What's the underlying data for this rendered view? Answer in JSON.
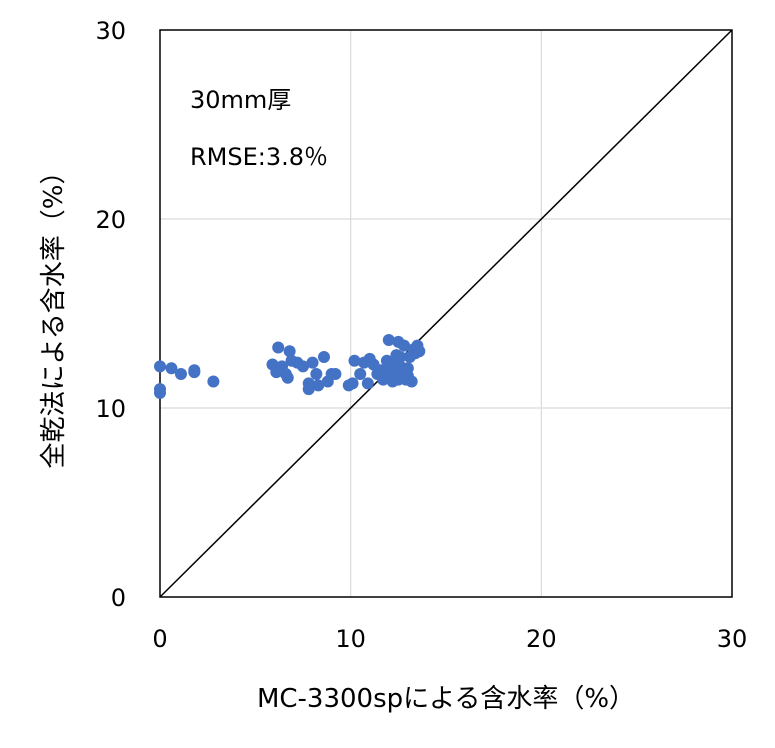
{
  "chart_data": {
    "type": "scatter",
    "xlabel": "MC-3300spによる含水率（%）",
    "ylabel": "全乾法による含水率（%）",
    "xlim": [
      0,
      30
    ],
    "ylim": [
      0,
      30
    ],
    "xticks": [
      "0",
      "10",
      "20",
      "30"
    ],
    "yticks": [
      "0",
      "10",
      "20",
      "30"
    ],
    "grid": true,
    "annotations": [
      "30mm厚",
      "RMSE:3.8％"
    ],
    "reference_line": {
      "from": [
        0,
        0
      ],
      "to": [
        30,
        30
      ],
      "color": "#000000"
    },
    "marker_color": "#4472C4",
    "series": [
      {
        "points": [
          [
            0.0,
            12.2
          ],
          [
            0.0,
            11.0
          ],
          [
            0.0,
            10.8
          ],
          [
            0.6,
            12.1
          ],
          [
            1.1,
            11.8
          ],
          [
            1.8,
            12.0
          ],
          [
            1.8,
            11.9
          ],
          [
            2.8,
            11.4
          ],
          [
            5.9,
            12.3
          ],
          [
            6.1,
            11.9
          ],
          [
            6.2,
            13.2
          ],
          [
            6.4,
            12.2
          ],
          [
            6.6,
            11.8
          ],
          [
            6.7,
            11.6
          ],
          [
            6.8,
            13.0
          ],
          [
            6.9,
            12.5
          ],
          [
            7.2,
            12.4
          ],
          [
            7.5,
            12.2
          ],
          [
            7.8,
            11.3
          ],
          [
            7.8,
            11.0
          ],
          [
            8.0,
            12.4
          ],
          [
            8.2,
            11.8
          ],
          [
            8.3,
            11.2
          ],
          [
            8.6,
            12.7
          ],
          [
            8.8,
            11.4
          ],
          [
            9.0,
            11.8
          ],
          [
            9.2,
            11.8
          ],
          [
            9.9,
            11.2
          ],
          [
            10.1,
            11.3
          ],
          [
            10.2,
            12.5
          ],
          [
            10.5,
            11.8
          ],
          [
            10.7,
            12.4
          ],
          [
            10.9,
            11.3
          ],
          [
            11.0,
            12.6
          ],
          [
            11.2,
            12.3
          ],
          [
            11.4,
            11.8
          ],
          [
            11.6,
            12.0
          ],
          [
            11.7,
            11.5
          ],
          [
            11.9,
            12.5
          ],
          [
            12.0,
            13.6
          ],
          [
            12.1,
            12.0
          ],
          [
            12.2,
            11.4
          ],
          [
            12.3,
            11.7
          ],
          [
            12.4,
            12.8
          ],
          [
            12.5,
            13.5
          ],
          [
            12.5,
            11.5
          ],
          [
            12.6,
            12.2
          ],
          [
            12.7,
            11.8
          ],
          [
            12.8,
            13.3
          ],
          [
            12.9,
            11.5
          ],
          [
            13.0,
            12.1
          ],
          [
            13.1,
            12.7
          ],
          [
            13.2,
            11.4
          ],
          [
            13.3,
            13.1
          ],
          [
            13.4,
            12.9
          ],
          [
            13.5,
            13.3
          ],
          [
            13.6,
            13.0
          ],
          [
            12.0,
            11.6
          ],
          [
            12.2,
            12.4
          ],
          [
            12.4,
            11.9
          ],
          [
            12.6,
            12.7
          ],
          [
            12.8,
            12.0
          ],
          [
            13.0,
            11.7
          ]
        ]
      }
    ]
  }
}
